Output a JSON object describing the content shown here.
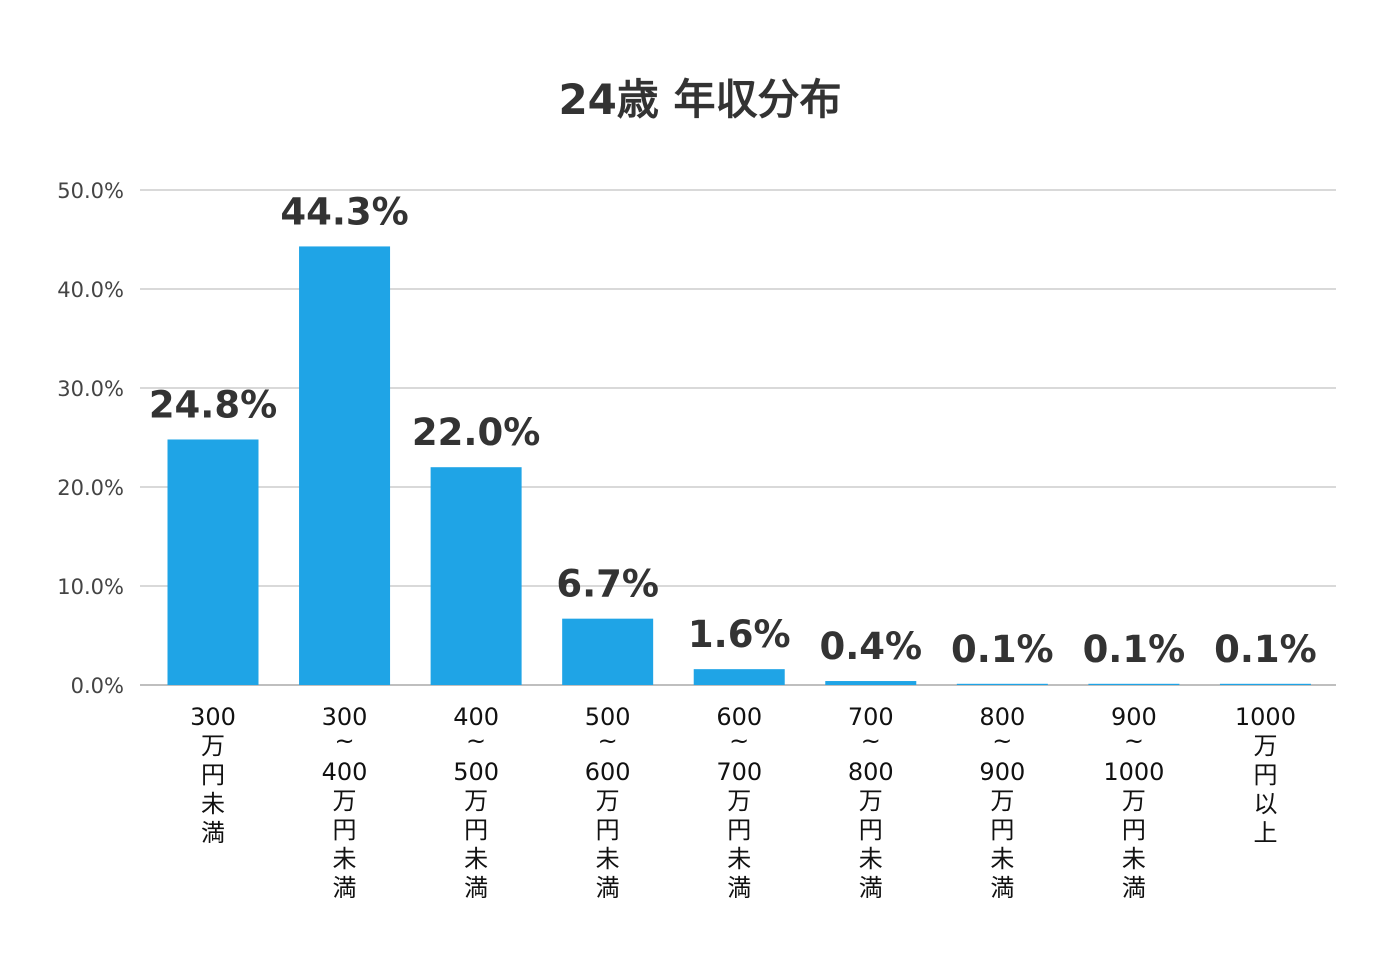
{
  "chart_data": {
    "type": "bar",
    "title": "24歳 年収分布",
    "xlabel": "",
    "ylabel": "",
    "ylim": [
      0,
      50
    ],
    "y_ticks": [
      "0.0%",
      "10.0%",
      "20.0%",
      "30.0%",
      "40.0%",
      "50.0%"
    ],
    "grid": true,
    "categories": [
      "300万円未満",
      "300〜400万円未満",
      "400〜500万円未満",
      "500〜600万円未満",
      "600〜700万円未満",
      "700〜800万円未満",
      "800〜900万円未満",
      "900〜1000万円未満",
      "1000万円以上"
    ],
    "category_lines": [
      [
        "300",
        "万",
        "円",
        "未",
        "満"
      ],
      [
        "300",
        "~",
        "400",
        "万",
        "円",
        "未",
        "満"
      ],
      [
        "400",
        "~",
        "500",
        "万",
        "円",
        "未",
        "満"
      ],
      [
        "500",
        "~",
        "600",
        "万",
        "円",
        "未",
        "満"
      ],
      [
        "600",
        "~",
        "700",
        "万",
        "円",
        "未",
        "満"
      ],
      [
        "700",
        "~",
        "800",
        "万",
        "円",
        "未",
        "満"
      ],
      [
        "800",
        "~",
        "900",
        "万",
        "円",
        "未",
        "満"
      ],
      [
        "900",
        "~",
        "1000",
        "万",
        "円",
        "未",
        "満"
      ],
      [
        "1000",
        "万",
        "円",
        "以",
        "上"
      ]
    ],
    "values": [
      24.8,
      44.3,
      22.0,
      6.7,
      1.6,
      0.4,
      0.1,
      0.1,
      0.1
    ],
    "data_labels": [
      "24.8%",
      "44.3%",
      "22.0%",
      "6.7%",
      "1.6%",
      "0.4%",
      "0.1%",
      "0.1%",
      "0.1%"
    ],
    "bar_color": "#1fa4e6",
    "grid_color": "#d9d9d9"
  }
}
